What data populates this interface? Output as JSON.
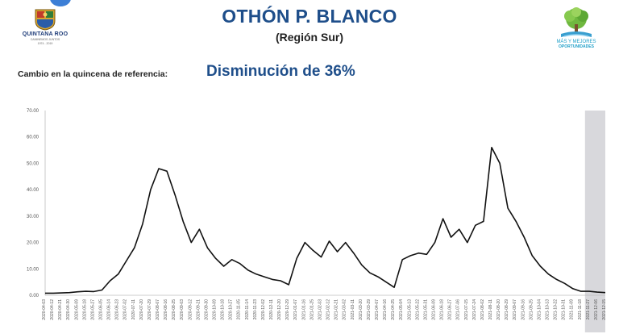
{
  "header": {
    "title": "OTHÓN P. BLANCO",
    "subtitle": "(Región Sur)"
  },
  "summary": {
    "label": "Cambio en la quincena de referencia:",
    "value": "Disminución de 36%"
  },
  "logos": {
    "left": {
      "name": "QUINTANA ROO",
      "motto": "CAMINEMOS JUNTOS",
      "years": "1974 - 2019",
      "color": "#1d3b78"
    },
    "right": {
      "line1": "MÁS Y MEJORES",
      "line2": "OPORTUNIDADES",
      "color": "#1f9fc8"
    }
  },
  "colors": {
    "accent": "#1e4e8a",
    "line": "#111111",
    "highlight": "#d8d8dc"
  },
  "chart_data": {
    "type": "line",
    "title": "",
    "xlabel": "",
    "ylabel": "",
    "ylim": [
      0,
      70
    ],
    "grid": false,
    "yticks": [
      "0.00",
      "10.00",
      "20.00",
      "30.00",
      "40.00",
      "50.00",
      "60.00",
      "70.00"
    ],
    "xticks": [
      "2020-04-03",
      "2020-04-12",
      "2020-04-21",
      "2020-04-30",
      "2020-05-09",
      "2020-05-18",
      "2020-05-27",
      "2020-06-05",
      "2020-06-14",
      "2020-06-23",
      "2020-07-02",
      "2020-07-11",
      "2020-07-20",
      "2020-07-29",
      "2020-08-07",
      "2020-08-16",
      "2020-08-25",
      "2020-09-03",
      "2020-09-12",
      "2020-09-21",
      "2020-09-30",
      "2020-10-09",
      "2020-10-18",
      "2020-10-27",
      "2020-11-05",
      "2020-11-14",
      "2020-11-23",
      "2020-12-02",
      "2020-12-11",
      "2020-12-20",
      "2020-12-29",
      "2021-01-07",
      "2021-01-16",
      "2021-01-25",
      "2021-02-03",
      "2021-02-12",
      "2021-02-21",
      "2021-03-02",
      "2021-03-11",
      "2021-03-20",
      "2021-03-29",
      "2021-04-07",
      "2021-04-16",
      "2021-04-25",
      "2021-05-04",
      "2021-05-13",
      "2021-05-22",
      "2021-05-31",
      "2021-06-09",
      "2021-06-18",
      "2021-06-27",
      "2021-07-06",
      "2021-07-15",
      "2021-07-24",
      "2021-08-02",
      "2021-08-11",
      "2021-08-20",
      "2021-08-29",
      "2021-09-07",
      "2021-09-16",
      "2021-09-25",
      "2021-10-04",
      "2021-10-13",
      "2021-10-22",
      "2021-10-31",
      "2021-11-09",
      "2021-11-18",
      "2021-11-27",
      "2021-12-06",
      "2021-12-15"
    ],
    "highlight_from": "2021-11-27",
    "series": [
      {
        "values": [
          0.8,
          0.8,
          0.9,
          1.0,
          1.3,
          1.5,
          1.4,
          2.0,
          5.5,
          8.0,
          13.0,
          18.0,
          27.0,
          40.0,
          48.0,
          47.0,
          38.0,
          28.0,
          20.0,
          25.0,
          18.0,
          14.0,
          11.0,
          13.5,
          12.0,
          9.5,
          8.0,
          7.0,
          6.0,
          5.5,
          4.0,
          14.0,
          20.0,
          17.0,
          14.5,
          20.5,
          16.5,
          20.0,
          16.0,
          11.5,
          8.5,
          7.0,
          5.0,
          3.0,
          13.5,
          15.0,
          16.0,
          15.5,
          20.0,
          29.0,
          22.0,
          25.0,
          20.0,
          26.5,
          28.0,
          56.0,
          50.0,
          33.0,
          28.0,
          22.0,
          15.0,
          11.0,
          8.0,
          6.0,
          4.5,
          2.5,
          1.5,
          1.5,
          1.2,
          1.0
        ]
      }
    ]
  }
}
